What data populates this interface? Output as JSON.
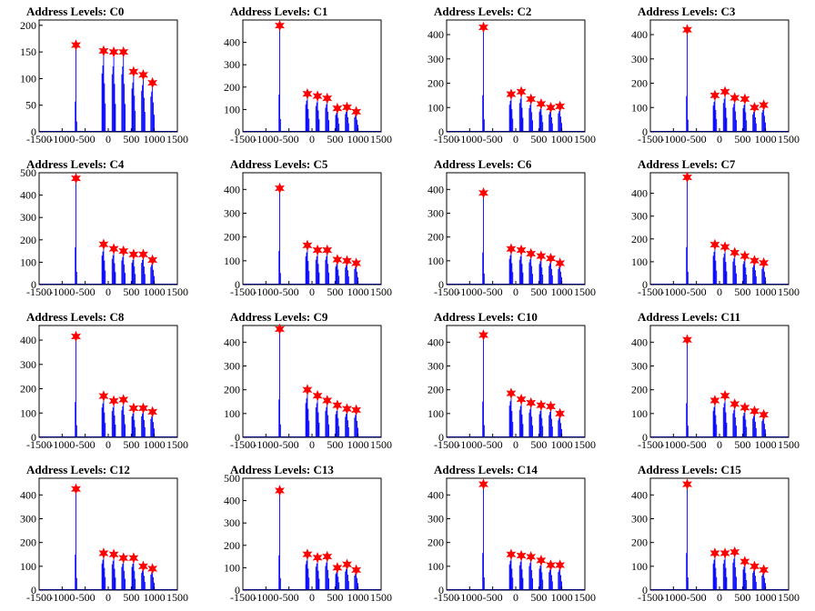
{
  "colors": {
    "trace": "#0000ff",
    "marker": "#ff0000",
    "frame": "#000000"
  },
  "chart_data": [
    {
      "type": "line",
      "title": "Address Levels: C0",
      "xlim": [
        -1500,
        1500
      ],
      "ylim": [
        0,
        210
      ],
      "xticks": [
        -1500,
        -1000,
        -500,
        0,
        500,
        1000,
        1500
      ],
      "xtick_labels": [
        "-1500",
        "-1000",
        "-500",
        "0",
        "500",
        "1000",
        "1500"
      ],
      "yticks": [
        0,
        50,
        100,
        150,
        200
      ],
      "ytick_labels": [
        "0",
        "50",
        "100",
        "150",
        "200"
      ],
      "peaks": [
        {
          "x": -700,
          "y": 163
        },
        {
          "x": -100,
          "y": 152
        },
        {
          "x": 120,
          "y": 150
        },
        {
          "x": 330,
          "y": 150
        },
        {
          "x": 550,
          "y": 113
        },
        {
          "x": 760,
          "y": 107
        },
        {
          "x": 960,
          "y": 92
        }
      ]
    },
    {
      "type": "line",
      "title": "Address Levels: C1",
      "xlim": [
        -1500,
        1500
      ],
      "ylim": [
        0,
        500
      ],
      "xticks": [
        -1500,
        -1000,
        -500,
        0,
        500,
        1000,
        1500
      ],
      "xtick_labels": [
        "-1500",
        "-1000",
        "-500",
        "0",
        "500",
        "1000",
        "1500"
      ],
      "yticks": [
        0,
        100,
        200,
        300,
        400
      ],
      "ytick_labels": [
        "0",
        "100",
        "200",
        "300",
        "400"
      ],
      "peaks": [
        {
          "x": -700,
          "y": 475
        },
        {
          "x": -100,
          "y": 170
        },
        {
          "x": 120,
          "y": 160
        },
        {
          "x": 330,
          "y": 150
        },
        {
          "x": 550,
          "y": 105
        },
        {
          "x": 760,
          "y": 110
        },
        {
          "x": 960,
          "y": 90
        }
      ]
    },
    {
      "type": "line",
      "title": "Address Levels: C2",
      "xlim": [
        -1500,
        1500
      ],
      "ylim": [
        0,
        460
      ],
      "xticks": [
        -1500,
        -1000,
        -500,
        0,
        500,
        1000,
        1500
      ],
      "xtick_labels": [
        "-1500",
        "-1000",
        "-500",
        "0",
        "500",
        "1000",
        "1500"
      ],
      "yticks": [
        0,
        100,
        200,
        300,
        400
      ],
      "ytick_labels": [
        "0",
        "100",
        "200",
        "300",
        "400"
      ],
      "peaks": [
        {
          "x": -700,
          "y": 430
        },
        {
          "x": -100,
          "y": 155
        },
        {
          "x": 120,
          "y": 165
        },
        {
          "x": 330,
          "y": 135
        },
        {
          "x": 550,
          "y": 115
        },
        {
          "x": 760,
          "y": 100
        },
        {
          "x": 960,
          "y": 105
        }
      ]
    },
    {
      "type": "line",
      "title": "Address Levels: C3",
      "xlim": [
        -1500,
        1500
      ],
      "ylim": [
        0,
        460
      ],
      "xticks": [
        -1500,
        -1000,
        -500,
        0,
        500,
        1000,
        1500
      ],
      "xtick_labels": [
        "-1500",
        "-1000",
        "-500",
        "0",
        "500",
        "1000",
        "1500"
      ],
      "yticks": [
        0,
        100,
        200,
        300,
        400
      ],
      "ytick_labels": [
        "0",
        "100",
        "200",
        "300",
        "400"
      ],
      "peaks": [
        {
          "x": -700,
          "y": 420
        },
        {
          "x": -100,
          "y": 150
        },
        {
          "x": 120,
          "y": 165
        },
        {
          "x": 330,
          "y": 140
        },
        {
          "x": 550,
          "y": 135
        },
        {
          "x": 760,
          "y": 100
        },
        {
          "x": 960,
          "y": 110
        }
      ]
    },
    {
      "type": "line",
      "title": "Address Levels: C4",
      "xlim": [
        -1500,
        1500
      ],
      "ylim": [
        0,
        500
      ],
      "xticks": [
        -1500,
        -1000,
        -500,
        0,
        500,
        1000,
        1500
      ],
      "xtick_labels": [
        "-1500",
        "-1000",
        "-500",
        "0",
        "500",
        "1000",
        "1500"
      ],
      "yticks": [
        0,
        100,
        200,
        300,
        400,
        500
      ],
      "ytick_labels": [
        "0",
        "100",
        "200",
        "300",
        "400",
        "500"
      ],
      "peaks": [
        {
          "x": -700,
          "y": 475
        },
        {
          "x": -100,
          "y": 180
        },
        {
          "x": 120,
          "y": 160
        },
        {
          "x": 330,
          "y": 150
        },
        {
          "x": 550,
          "y": 135
        },
        {
          "x": 760,
          "y": 135
        },
        {
          "x": 960,
          "y": 110
        }
      ]
    },
    {
      "type": "line",
      "title": "Address Levels: C5",
      "xlim": [
        -1500,
        1500
      ],
      "ylim": [
        0,
        470
      ],
      "xticks": [
        -1500,
        -1000,
        -500,
        0,
        500,
        1000,
        1500
      ],
      "xtick_labels": [
        "-1500",
        "-1000",
        "-500",
        "0",
        "500",
        "1000",
        "1500"
      ],
      "yticks": [
        0,
        100,
        200,
        300,
        400
      ],
      "ytick_labels": [
        "0",
        "100",
        "200",
        "300",
        "400"
      ],
      "peaks": [
        {
          "x": -700,
          "y": 405
        },
        {
          "x": -100,
          "y": 165
        },
        {
          "x": 120,
          "y": 145
        },
        {
          "x": 330,
          "y": 145
        },
        {
          "x": 550,
          "y": 105
        },
        {
          "x": 760,
          "y": 100
        },
        {
          "x": 960,
          "y": 90
        }
      ]
    },
    {
      "type": "line",
      "title": "Address Levels: C6",
      "xlim": [
        -1500,
        1500
      ],
      "ylim": [
        0,
        470
      ],
      "xticks": [
        -1500,
        -1000,
        -500,
        0,
        500,
        1000,
        1500
      ],
      "xtick_labels": [
        "-1500",
        "-1000",
        "-500",
        "0",
        "500",
        "1000",
        "1500"
      ],
      "yticks": [
        0,
        100,
        200,
        300,
        400
      ],
      "ytick_labels": [
        "0",
        "100",
        "200",
        "300",
        "400"
      ],
      "peaks": [
        {
          "x": -700,
          "y": 385
        },
        {
          "x": -100,
          "y": 150
        },
        {
          "x": 120,
          "y": 145
        },
        {
          "x": 330,
          "y": 130
        },
        {
          "x": 550,
          "y": 120
        },
        {
          "x": 760,
          "y": 110
        },
        {
          "x": 960,
          "y": 90
        }
      ]
    },
    {
      "type": "line",
      "title": "Address Levels: C7",
      "xlim": [
        -1500,
        1500
      ],
      "ylim": [
        0,
        490
      ],
      "xticks": [
        -1500,
        -1000,
        -500,
        0,
        500,
        1000,
        1500
      ],
      "xtick_labels": [
        "-1500",
        "-1000",
        "-500",
        "0",
        "500",
        "1000",
        "1500"
      ],
      "yticks": [
        0,
        100,
        200,
        300,
        400
      ],
      "ytick_labels": [
        "0",
        "100",
        "200",
        "300",
        "400"
      ],
      "peaks": [
        {
          "x": -700,
          "y": 470
        },
        {
          "x": -100,
          "y": 175
        },
        {
          "x": 120,
          "y": 165
        },
        {
          "x": 330,
          "y": 140
        },
        {
          "x": 550,
          "y": 125
        },
        {
          "x": 760,
          "y": 105
        },
        {
          "x": 960,
          "y": 95
        }
      ]
    },
    {
      "type": "line",
      "title": "Address Levels: C8",
      "xlim": [
        -1500,
        1500
      ],
      "ylim": [
        0,
        460
      ],
      "xticks": [
        -1500,
        -1000,
        -500,
        0,
        500,
        1000,
        1500
      ],
      "xtick_labels": [
        "-1500",
        "-1000",
        "-500",
        "0",
        "500",
        "1000",
        "1500"
      ],
      "yticks": [
        0,
        100,
        200,
        300,
        400
      ],
      "ytick_labels": [
        "0",
        "100",
        "200",
        "300",
        "400"
      ],
      "peaks": [
        {
          "x": -700,
          "y": 415
        },
        {
          "x": -100,
          "y": 170
        },
        {
          "x": 120,
          "y": 150
        },
        {
          "x": 330,
          "y": 155
        },
        {
          "x": 550,
          "y": 120
        },
        {
          "x": 760,
          "y": 120
        },
        {
          "x": 960,
          "y": 105
        }
      ]
    },
    {
      "type": "line",
      "title": "Address Levels: C9",
      "xlim": [
        -1500,
        1500
      ],
      "ylim": [
        0,
        470
      ],
      "xticks": [
        -1500,
        -1000,
        -500,
        0,
        500,
        1000,
        1500
      ],
      "xtick_labels": [
        "-1500",
        "-1000",
        "-500",
        "0",
        "500",
        "1000",
        "1500"
      ],
      "yticks": [
        0,
        100,
        200,
        300,
        400
      ],
      "ytick_labels": [
        "0",
        "100",
        "200",
        "300",
        "400"
      ],
      "peaks": [
        {
          "x": -700,
          "y": 455
        },
        {
          "x": -100,
          "y": 200
        },
        {
          "x": 120,
          "y": 175
        },
        {
          "x": 330,
          "y": 155
        },
        {
          "x": 550,
          "y": 135
        },
        {
          "x": 760,
          "y": 120
        },
        {
          "x": 960,
          "y": 115
        }
      ]
    },
    {
      "type": "line",
      "title": "Address Levels: C10",
      "xlim": [
        -1500,
        1500
      ],
      "ylim": [
        0,
        470
      ],
      "xticks": [
        -1500,
        -1000,
        -500,
        0,
        500,
        1000,
        1500
      ],
      "xtick_labels": [
        "-1500",
        "-1000",
        "-500",
        "0",
        "500",
        "1000",
        "1500"
      ],
      "yticks": [
        0,
        100,
        200,
        300,
        400
      ],
      "ytick_labels": [
        "0",
        "100",
        "200",
        "300",
        "400"
      ],
      "peaks": [
        {
          "x": -700,
          "y": 430
        },
        {
          "x": -100,
          "y": 185
        },
        {
          "x": 120,
          "y": 160
        },
        {
          "x": 330,
          "y": 145
        },
        {
          "x": 550,
          "y": 135
        },
        {
          "x": 760,
          "y": 130
        },
        {
          "x": 960,
          "y": 100
        }
      ]
    },
    {
      "type": "line",
      "title": "Address Levels: C11",
      "xlim": [
        -1500,
        1500
      ],
      "ylim": [
        0,
        470
      ],
      "xticks": [
        -1500,
        -1000,
        -500,
        0,
        500,
        1000,
        1500
      ],
      "xtick_labels": [
        "-1500",
        "-1000",
        "-500",
        "0",
        "500",
        "1000",
        "1500"
      ],
      "yticks": [
        0,
        100,
        200,
        300,
        400
      ],
      "ytick_labels": [
        "0",
        "100",
        "200",
        "300",
        "400"
      ],
      "peaks": [
        {
          "x": -700,
          "y": 410
        },
        {
          "x": -100,
          "y": 155
        },
        {
          "x": 120,
          "y": 175
        },
        {
          "x": 330,
          "y": 140
        },
        {
          "x": 550,
          "y": 125
        },
        {
          "x": 760,
          "y": 110
        },
        {
          "x": 960,
          "y": 95
        }
      ]
    },
    {
      "type": "line",
      "title": "Address Levels: C12",
      "xlim": [
        -1500,
        1500
      ],
      "ylim": [
        0,
        470
      ],
      "xticks": [
        -1500,
        -1000,
        -500,
        0,
        500,
        1000,
        1500
      ],
      "xtick_labels": [
        "-1500",
        "-1000",
        "-500",
        "0",
        "500",
        "1000",
        "1500"
      ],
      "yticks": [
        0,
        100,
        200,
        300,
        400
      ],
      "ytick_labels": [
        "0",
        "100",
        "200",
        "300",
        "400"
      ],
      "peaks": [
        {
          "x": -700,
          "y": 425
        },
        {
          "x": -100,
          "y": 155
        },
        {
          "x": 120,
          "y": 150
        },
        {
          "x": 330,
          "y": 135
        },
        {
          "x": 550,
          "y": 135
        },
        {
          "x": 760,
          "y": 100
        },
        {
          "x": 960,
          "y": 90
        }
      ]
    },
    {
      "type": "line",
      "title": "Address Levels: C13",
      "xlim": [
        -1500,
        1500
      ],
      "ylim": [
        0,
        500
      ],
      "xticks": [
        -1500,
        -1000,
        -500,
        0,
        500,
        1000,
        1500
      ],
      "xtick_labels": [
        "-1500",
        "-1000",
        "-500",
        "0",
        "500",
        "1000",
        "1500"
      ],
      "yticks": [
        0,
        100,
        200,
        300,
        400,
        500
      ],
      "ytick_labels": [
        "0",
        "100",
        "200",
        "300",
        "400",
        "500"
      ],
      "peaks": [
        {
          "x": -700,
          "y": 445
        },
        {
          "x": -100,
          "y": 160
        },
        {
          "x": 120,
          "y": 145
        },
        {
          "x": 330,
          "y": 150
        },
        {
          "x": 550,
          "y": 100
        },
        {
          "x": 760,
          "y": 115
        },
        {
          "x": 960,
          "y": 90
        }
      ]
    },
    {
      "type": "line",
      "title": "Address Levels: C14",
      "xlim": [
        -1500,
        1500
      ],
      "ylim": [
        0,
        470
      ],
      "xticks": [
        -1500,
        -1000,
        -500,
        0,
        500,
        1000,
        1500
      ],
      "xtick_labels": [
        "-1500",
        "-1000",
        "-500",
        "0",
        "500",
        "1000",
        "1500"
      ],
      "yticks": [
        0,
        100,
        200,
        300,
        400
      ],
      "ytick_labels": [
        "0",
        "100",
        "200",
        "300",
        "400"
      ],
      "peaks": [
        {
          "x": -700,
          "y": 445
        },
        {
          "x": -100,
          "y": 150
        },
        {
          "x": 120,
          "y": 145
        },
        {
          "x": 330,
          "y": 140
        },
        {
          "x": 550,
          "y": 125
        },
        {
          "x": 760,
          "y": 105
        },
        {
          "x": 960,
          "y": 105
        }
      ]
    },
    {
      "type": "line",
      "title": "Address Levels: C15",
      "xlim": [
        -1500,
        1500
      ],
      "ylim": [
        0,
        470
      ],
      "xticks": [
        -1500,
        -1000,
        -500,
        0,
        500,
        1000,
        1500
      ],
      "xtick_labels": [
        "-1500",
        "-1000",
        "-500",
        "0",
        "500",
        "1000",
        "1500"
      ],
      "yticks": [
        0,
        100,
        200,
        300,
        400
      ],
      "ytick_labels": [
        "0",
        "100",
        "200",
        "300",
        "400"
      ],
      "peaks": [
        {
          "x": -700,
          "y": 445
        },
        {
          "x": -100,
          "y": 155
        },
        {
          "x": 120,
          "y": 155
        },
        {
          "x": 330,
          "y": 160
        },
        {
          "x": 550,
          "y": 120
        },
        {
          "x": 760,
          "y": 100
        },
        {
          "x": 960,
          "y": 85
        }
      ]
    }
  ]
}
